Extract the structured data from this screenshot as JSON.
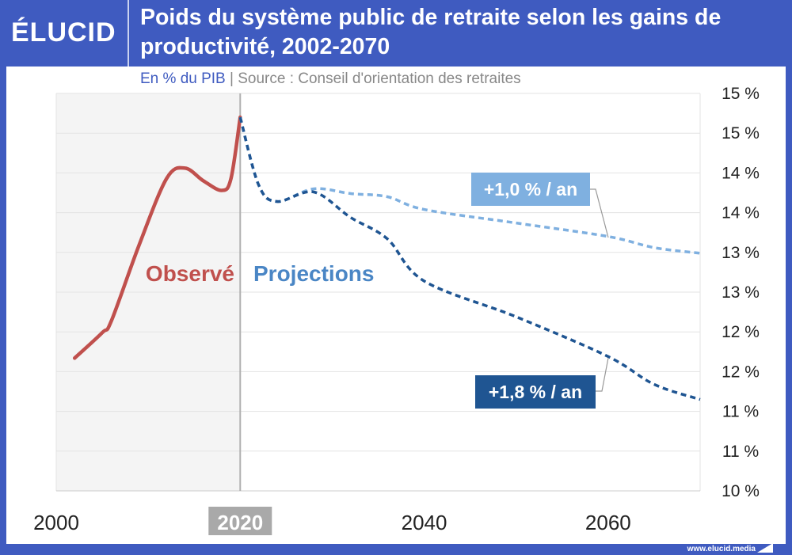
{
  "header": {
    "logo": "ÉLUCID",
    "title": "Poids du système public de retraite selon les gains de productivité, 2002-2070",
    "unit": "En % du PIB",
    "separator": "|",
    "source": "Source : Conseil d'orientation des retraites"
  },
  "footer": {
    "url": "www.elucid.media"
  },
  "colors": {
    "brand": "#3f5bc0",
    "observed": "#c0504d",
    "low": "#7fb0e0",
    "high": "#1f5592",
    "projections_text": "#4a86c5"
  },
  "chart_data": {
    "type": "line",
    "title": "Poids du système public de retraite selon les gains de productivité, 2002-2070",
    "ylabel": "En % du PIB",
    "xlim": [
      2000,
      2070
    ],
    "ylim": [
      10,
      15
    ],
    "x_ticks": [
      2000,
      2020,
      2040,
      2060
    ],
    "x_tick_labels": [
      "2000",
      "2020",
      "2040",
      "2060"
    ],
    "y_ticks": [
      10,
      10.5,
      11,
      11.5,
      12,
      12.5,
      13,
      13.5,
      14,
      14.5,
      15
    ],
    "y_tick_labels": [
      "10 %",
      "11 %",
      "11 %",
      "12 %",
      "12 %",
      "13 %",
      "13 %",
      "14 %",
      "14 %",
      "15 %",
      "15 %"
    ],
    "grid": true,
    "annotations": {
      "observed": "Observé",
      "projections": "Projections",
      "highlight_year": "2020"
    },
    "series": [
      {
        "name": "Observé",
        "style": "solid",
        "x": [
          2002,
          2005,
          2006,
          2009,
          2012,
          2014,
          2016,
          2018,
          2019,
          2020
        ],
        "y": [
          11.67,
          11.99,
          12.14,
          13.09,
          13.93,
          14.06,
          13.9,
          13.78,
          13.93,
          14.7
        ]
      },
      {
        "name": "+1,0 % / an",
        "style": "dashed",
        "x": [
          2020,
          2022,
          2024,
          2028,
          2032,
          2036,
          2040,
          2050,
          2060,
          2065,
          2070
        ],
        "y": [
          14.7,
          13.85,
          13.64,
          13.8,
          13.74,
          13.7,
          13.54,
          13.37,
          13.2,
          13.06,
          12.99
        ]
      },
      {
        "name": "+1,8 % / an",
        "style": "dashed",
        "x": [
          2020,
          2022,
          2024,
          2028,
          2032,
          2036,
          2040,
          2050,
          2060,
          2065,
          2070
        ],
        "y": [
          14.7,
          13.85,
          13.64,
          13.76,
          13.44,
          13.17,
          12.64,
          12.19,
          11.69,
          11.34,
          11.15
        ]
      }
    ]
  }
}
